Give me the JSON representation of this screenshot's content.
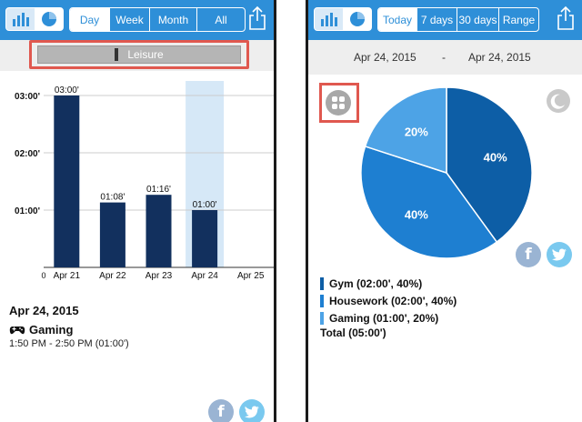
{
  "left": {
    "tabs": [
      {
        "label": "Day",
        "selected": true
      },
      {
        "label": "Week",
        "selected": false
      },
      {
        "label": "Month",
        "selected": false
      },
      {
        "label": "All",
        "selected": false
      }
    ],
    "category_label": "Leisure",
    "selected_day": "Apr 24, 2015",
    "activity_name": "Gaming",
    "activity_time": "1:50 PM - 2:50 PM (01:00')"
  },
  "right": {
    "tabs": [
      {
        "label": "Today",
        "selected": true
      },
      {
        "label": "7 days",
        "selected": false
      },
      {
        "label": "30 days",
        "selected": false
      },
      {
        "label": "Range",
        "selected": false
      }
    ],
    "range_start": "Apr 24, 2015",
    "range_sep": "-",
    "range_end": "Apr 24, 2015",
    "legend": [
      {
        "label": "Gym (02:00', 40%)",
        "color": "#0d5ea6"
      },
      {
        "label": "Housework (02:00', 40%)",
        "color": "#1e7fd1"
      },
      {
        "label": "Gaming (01:00', 20%)",
        "color": "#4da3e6"
      }
    ],
    "total": "Total (05:00')"
  },
  "social": {
    "facebook": "f"
  },
  "colors": {
    "topbar": "#2e8fd8",
    "bar": "#12305e",
    "highlight": "#d6e8f7",
    "red_outline": "#e0584f"
  },
  "chart_data": [
    {
      "type": "bar",
      "categories": [
        "Apr 21",
        "Apr 22",
        "Apr 23",
        "Apr 24",
        "Apr 25"
      ],
      "values": [
        180,
        68,
        76,
        60,
        0
      ],
      "data_labels": [
        "03:00'",
        "01:08'",
        "01:16'",
        "01:00'",
        ""
      ],
      "y_ticks": [
        {
          "value": 60,
          "label": "01:00'"
        },
        {
          "value": 120,
          "label": "02:00'"
        },
        {
          "value": 180,
          "label": "03:00'"
        }
      ],
      "highlighted_category": "Apr 24",
      "ylim": [
        0,
        200
      ],
      "grid": true
    },
    {
      "type": "pie",
      "categories": [
        "Gym",
        "Housework",
        "Gaming"
      ],
      "values": [
        40,
        40,
        20
      ],
      "labels": [
        "40%",
        "40%",
        "20%"
      ],
      "colors": [
        "#0d5ea6",
        "#1e7fd1",
        "#4da3e6"
      ]
    }
  ]
}
